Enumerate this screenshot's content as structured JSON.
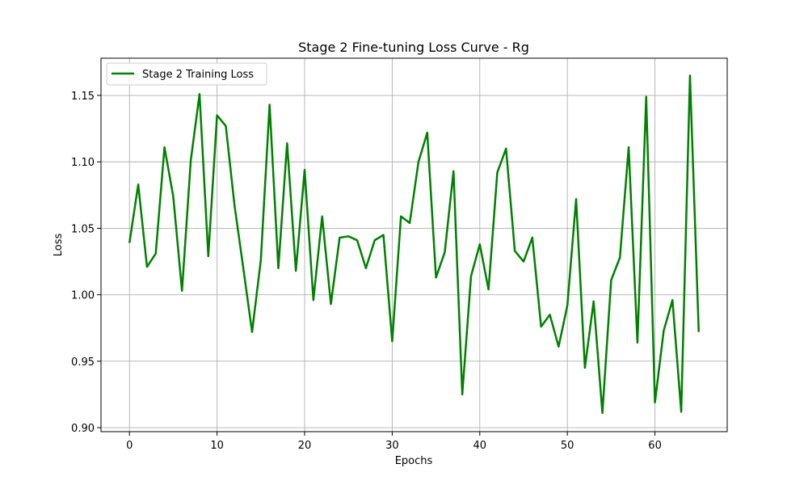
{
  "chart_data": {
    "type": "line",
    "title": "Stage 2 Fine-tuning Loss Curve - Rg",
    "xlabel": "Epochs",
    "ylabel": "Loss",
    "xlim": [
      -3.25,
      68.25
    ],
    "ylim": [
      0.897,
      1.178
    ],
    "xticks": [
      0,
      10,
      20,
      30,
      40,
      50,
      60
    ],
    "yticks": [
      0.9,
      0.95,
      1.0,
      1.05,
      1.1,
      1.15
    ],
    "ytick_labels": [
      "0.90",
      "0.95",
      "1.00",
      "1.05",
      "1.10",
      "1.15"
    ],
    "grid": true,
    "legend": "top-left",
    "series": [
      {
        "name": "Stage 2 Training Loss",
        "color": "#008000",
        "x": [
          0,
          1,
          2,
          3,
          4,
          5,
          6,
          7,
          8,
          9,
          10,
          11,
          12,
          13,
          14,
          15,
          16,
          17,
          18,
          19,
          20,
          21,
          22,
          23,
          24,
          25,
          26,
          27,
          28,
          29,
          30,
          31,
          32,
          33,
          34,
          35,
          36,
          37,
          38,
          39,
          40,
          41,
          42,
          43,
          44,
          45,
          46,
          47,
          48,
          49,
          50,
          51,
          52,
          53,
          54,
          55,
          56,
          57,
          58,
          59,
          60,
          61,
          62,
          63,
          64,
          65
        ],
        "values": [
          1.039,
          1.083,
          1.021,
          1.031,
          1.111,
          1.074,
          1.003,
          1.101,
          1.151,
          1.029,
          1.135,
          1.127,
          1.067,
          1.02,
          0.972,
          1.026,
          1.143,
          1.02,
          1.114,
          1.018,
          1.094,
          0.996,
          1.059,
          0.993,
          1.043,
          1.044,
          1.041,
          1.02,
          1.041,
          1.045,
          0.965,
          1.059,
          1.054,
          1.1,
          1.122,
          1.013,
          1.032,
          1.093,
          0.925,
          1.014,
          1.038,
          1.004,
          1.092,
          1.11,
          1.033,
          1.025,
          1.043,
          0.976,
          0.985,
          0.961,
          0.992,
          1.072,
          0.945,
          0.995,
          0.911,
          1.011,
          1.028,
          1.111,
          0.964,
          1.149,
          0.919,
          0.973,
          0.996,
          0.912,
          1.165,
          0.972
        ]
      }
    ]
  }
}
